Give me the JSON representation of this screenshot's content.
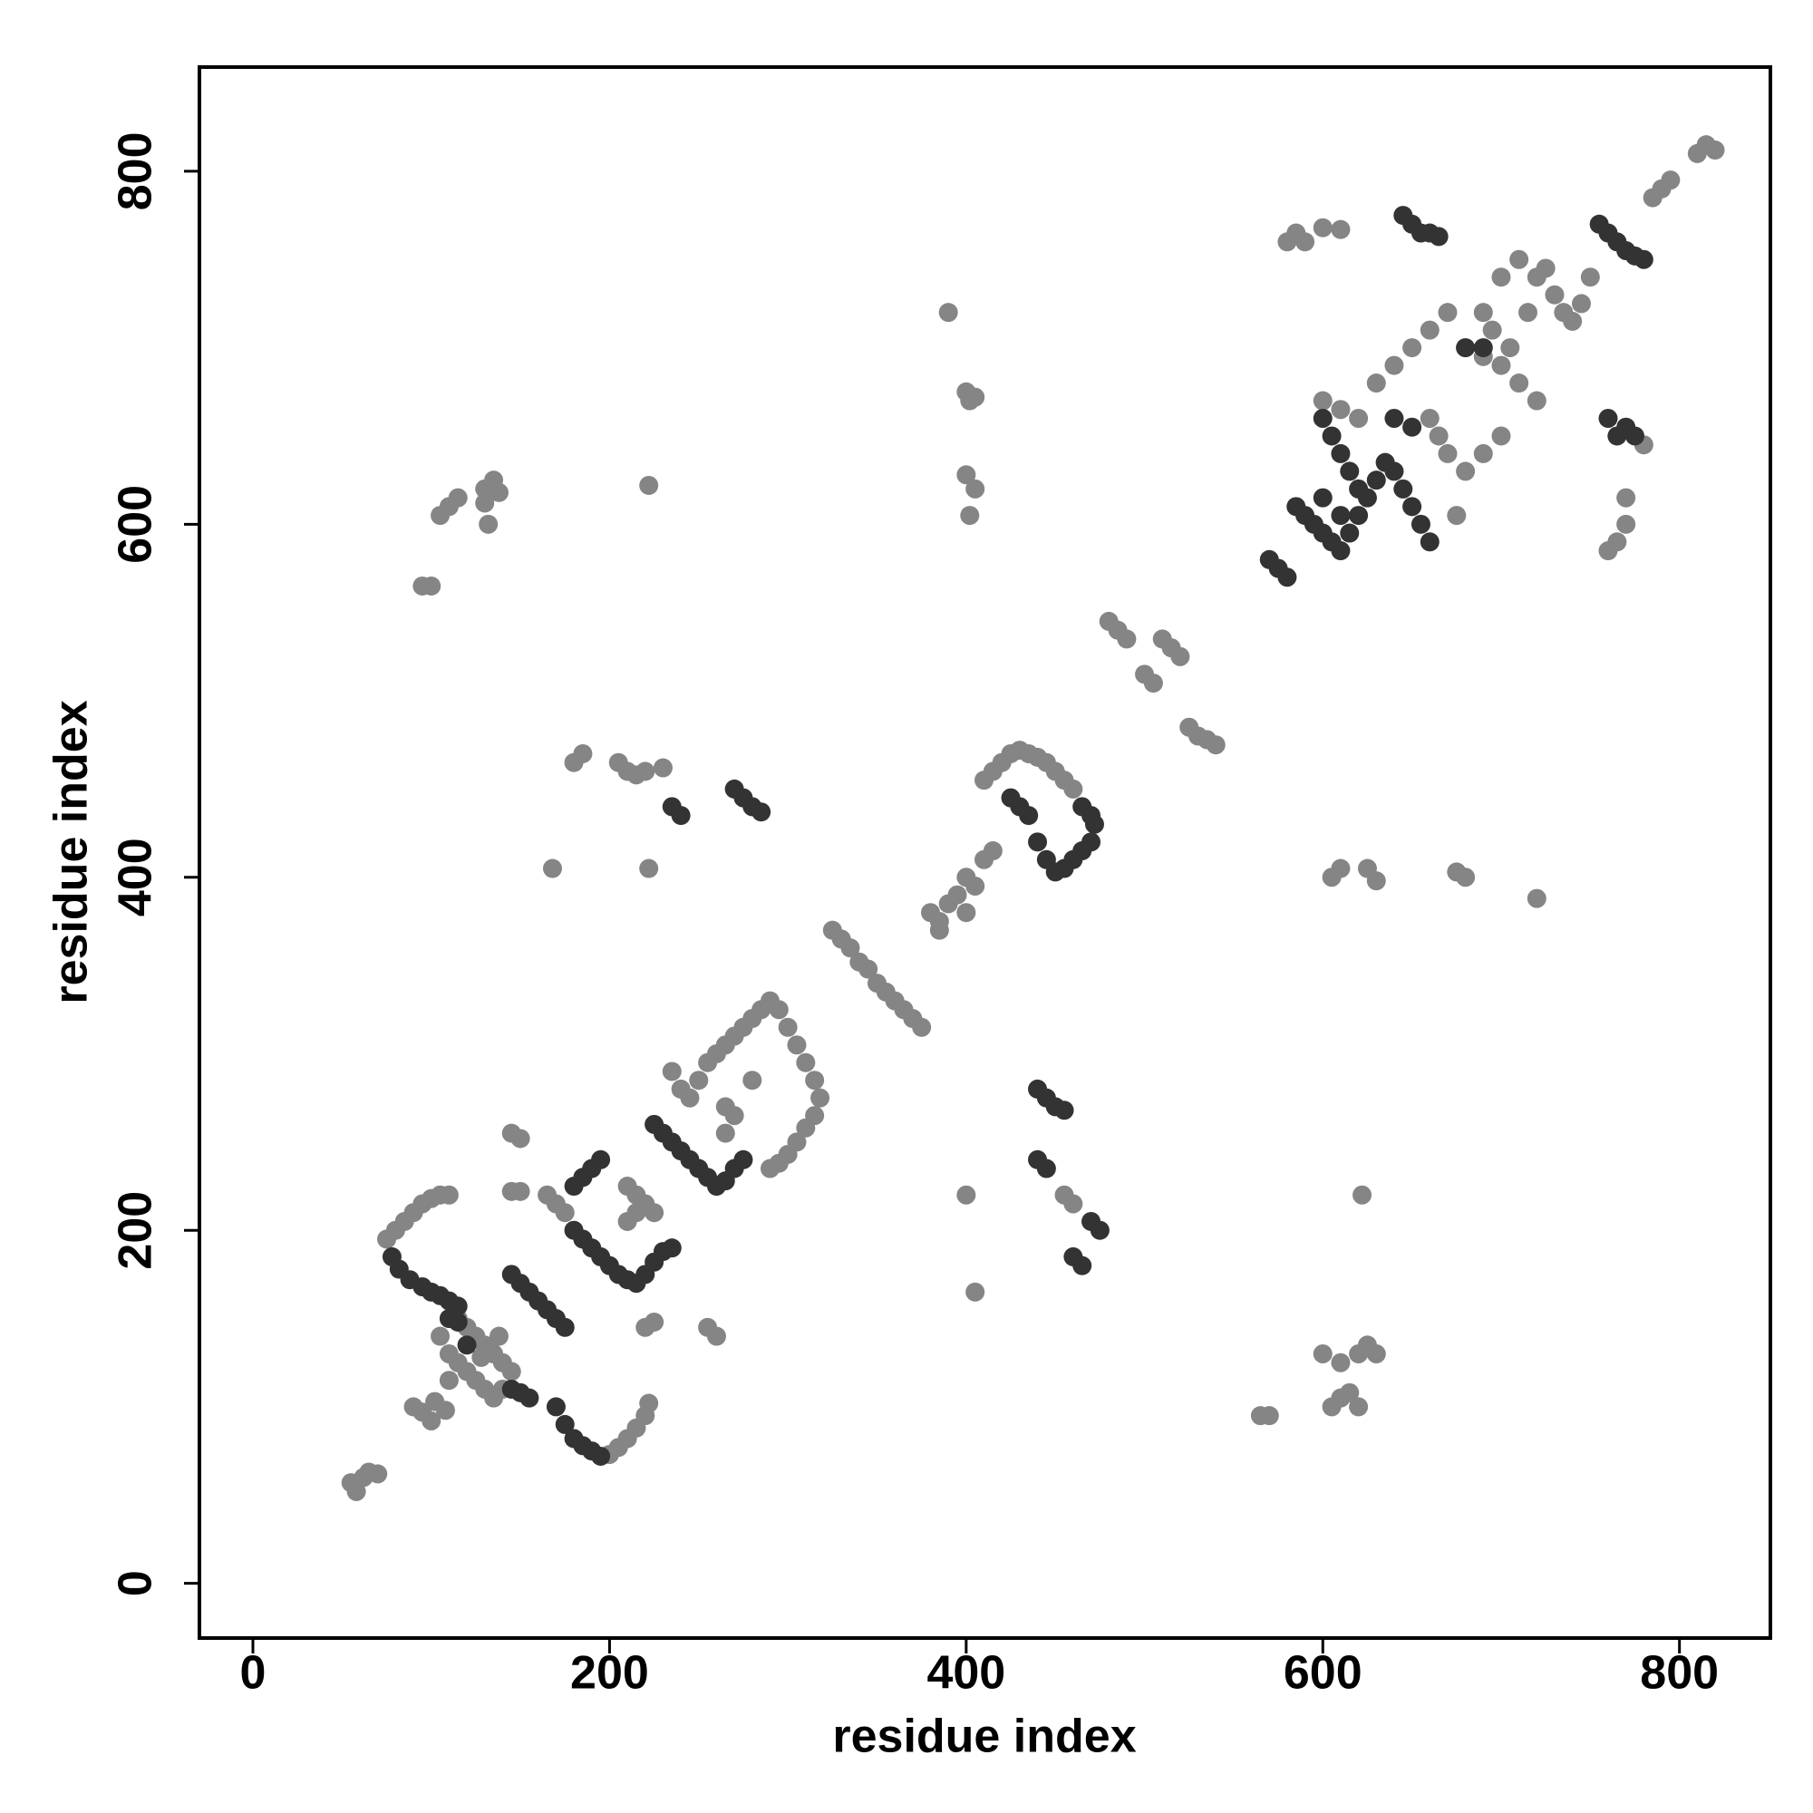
{
  "chart_data": {
    "type": "scatter",
    "x_label": "residue index",
    "y_label": "residue index",
    "xlim": [
      -30,
      851
    ],
    "ylim": [
      -31,
      859
    ],
    "xticks": [
      0,
      200,
      400,
      600,
      800
    ],
    "yticks": [
      0,
      200,
      400,
      600,
      800
    ],
    "series": [
      {
        "color": "#858585",
        "x": [
          55,
          58,
          62,
          65,
          70,
          90,
          95,
          100,
          102,
          108,
          105,
          110,
          115,
          120,
          125,
          130,
          135,
          140,
          120,
          125,
          130,
          135,
          140,
          145,
          115,
          110,
          128,
          138,
          75,
          80,
          85,
          90,
          95,
          100,
          105,
          110,
          200,
          205,
          210,
          215,
          220,
          222,
          145,
          150,
          145,
          150,
          165,
          170,
          175,
          210,
          215,
          220,
          215,
          210,
          225,
          220,
          225,
          255,
          260,
          235,
          240,
          245,
          250,
          255,
          260,
          265,
          270,
          275,
          280,
          285,
          290,
          295,
          300,
          305,
          310,
          315,
          318,
          315,
          310,
          305,
          300,
          295,
          290,
          265,
          270,
          265,
          280,
          325,
          330,
          335,
          340,
          345,
          350,
          355,
          360,
          365,
          370,
          375,
          380,
          385,
          390,
          395,
          400,
          405,
          410,
          415,
          385,
          400,
          410,
          415,
          420,
          425,
          430,
          435,
          440,
          445,
          450,
          455,
          460,
          480,
          485,
          490,
          500,
          505,
          510,
          515,
          520,
          525,
          530,
          535,
          540,
          600,
          610,
          620,
          630,
          640,
          650,
          660,
          670,
          680,
          690,
          700,
          710,
          720,
          680,
          690,
          700,
          670,
          675,
          660,
          665,
          695,
          705,
          715,
          720,
          725,
          730,
          735,
          740,
          745,
          750,
          700,
          690,
          710,
          760,
          765,
          770,
          770,
          780,
          785,
          790,
          795,
          810,
          815,
          820,
          580,
          585,
          590,
          600,
          610,
          95,
          100,
          105,
          110,
          115,
          130,
          135,
          138,
          132,
          222,
          130,
          390,
          400,
          402,
          405,
          400,
          405,
          402,
          168,
          222,
          180,
          185,
          205,
          210,
          215,
          220,
          230,
          400,
          405,
          455,
          460,
          565,
          570,
          600,
          610,
          620,
          625,
          630,
          605,
          610,
          615,
          620,
          622,
          605,
          610,
          625,
          630,
          675,
          680,
          720
        ],
        "values": [
          57,
          52,
          60,
          63,
          62,
          100,
          97,
          92,
          103,
          98,
          140,
          130,
          125,
          120,
          115,
          110,
          105,
          110,
          145,
          140,
          135,
          130,
          125,
          120,
          150,
          115,
          128,
          140,
          195,
          200,
          205,
          210,
          215,
          218,
          220,
          220,
          73,
          77,
          82,
          88,
          95,
          102,
          255,
          252,
          222,
          222,
          220,
          215,
          210,
          225,
          220,
          215,
          210,
          205,
          210,
          145,
          148,
          145,
          140,
          290,
          280,
          275,
          285,
          295,
          300,
          305,
          310,
          315,
          320,
          325,
          330,
          325,
          315,
          305,
          295,
          285,
          275,
          265,
          258,
          250,
          243,
          238,
          235,
          270,
          265,
          255,
          285,
          370,
          365,
          360,
          352,
          348,
          340,
          335,
          330,
          325,
          320,
          315,
          380,
          375,
          385,
          390,
          400,
          395,
          410,
          415,
          370,
          380,
          455,
          460,
          465,
          470,
          472,
          470,
          468,
          465,
          460,
          455,
          450,
          545,
          540,
          535,
          515,
          510,
          535,
          530,
          525,
          485,
          480,
          478,
          475,
          670,
          665,
          660,
          680,
          690,
          700,
          710,
          720,
          700,
          695,
          690,
          680,
          670,
          630,
          640,
          650,
          640,
          605,
          660,
          650,
          710,
          700,
          720,
          740,
          745,
          730,
          720,
          715,
          725,
          740,
          740,
          720,
          750,
          585,
          590,
          600,
          615,
          645,
          785,
          790,
          795,
          810,
          815,
          812,
          760,
          765,
          760,
          768,
          767,
          565,
          565,
          605,
          610,
          615,
          620,
          625,
          618,
          600,
          622,
          612,
          720,
          675,
          670,
          672,
          628,
          620,
          605,
          405,
          405,
          465,
          470,
          465,
          460,
          458,
          460,
          462,
          220,
          165,
          220,
          215,
          95,
          95,
          130,
          125,
          130,
          135,
          130,
          100,
          105,
          108,
          100,
          220,
          400,
          405,
          405,
          398,
          403,
          400,
          388
        ]
      },
      {
        "color": "#333333",
        "x": [
          110,
          115,
          120,
          145,
          150,
          155,
          78,
          82,
          88,
          95,
          100,
          105,
          110,
          115,
          170,
          175,
          180,
          185,
          190,
          195,
          145,
          150,
          155,
          160,
          165,
          170,
          175,
          180,
          185,
          190,
          195,
          180,
          185,
          190,
          195,
          200,
          205,
          210,
          215,
          220,
          225,
          230,
          235,
          225,
          230,
          235,
          240,
          245,
          250,
          255,
          260,
          265,
          270,
          275,
          465,
          470,
          472,
          470,
          465,
          460,
          455,
          450,
          445,
          440,
          435,
          430,
          425,
          570,
          575,
          580,
          585,
          590,
          595,
          600,
          605,
          610,
          615,
          620,
          625,
          630,
          635,
          640,
          645,
          650,
          655,
          660,
          600,
          605,
          610,
          615,
          620,
          640,
          650,
          600,
          610,
          680,
          690,
          765,
          770,
          775,
          760,
          755,
          760,
          765,
          770,
          775,
          780,
          645,
          650,
          655,
          660,
          665,
          235,
          240,
          270,
          275,
          280,
          285,
          440,
          445,
          450,
          455,
          440,
          445,
          470,
          475,
          460,
          465
        ],
        "values": [
          150,
          148,
          135,
          110,
          108,
          105,
          185,
          178,
          172,
          168,
          165,
          163,
          160,
          157,
          100,
          90,
          82,
          78,
          75,
          72,
          175,
          170,
          165,
          160,
          155,
          150,
          145,
          225,
          230,
          235,
          240,
          200,
          195,
          190,
          185,
          180,
          175,
          172,
          170,
          175,
          182,
          188,
          190,
          260,
          255,
          250,
          245,
          240,
          235,
          230,
          225,
          228,
          235,
          240,
          440,
          435,
          430,
          420,
          415,
          410,
          405,
          403,
          410,
          420,
          435,
          440,
          445,
          580,
          575,
          570,
          610,
          605,
          600,
          595,
          590,
          585,
          595,
          605,
          615,
          625,
          635,
          630,
          620,
          610,
          600,
          590,
          660,
          650,
          640,
          630,
          620,
          660,
          655,
          615,
          605,
          700,
          700,
          650,
          655,
          650,
          660,
          770,
          765,
          760,
          755,
          752,
          750,
          775,
          770,
          765,
          765,
          763,
          440,
          435,
          450,
          445,
          440,
          437,
          280,
          275,
          270,
          268,
          240,
          235,
          205,
          200,
          185,
          180
        ]
      }
    ]
  }
}
